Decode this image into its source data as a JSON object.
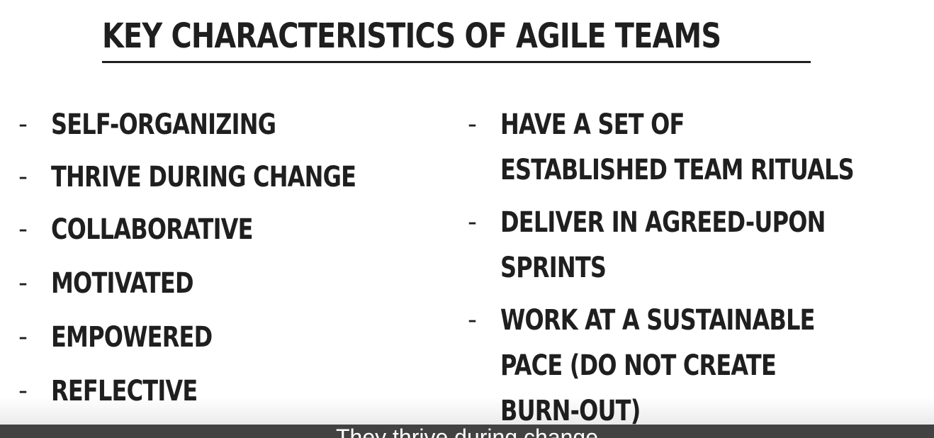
{
  "slide": {
    "title": "KEY CHARACTERISTICS OF AGILE TEAMS",
    "left_items": [
      {
        "dash": "-",
        "text": "SELF-ORGANIZING"
      },
      {
        "dash": "-",
        "text": "THRIVE DURING CHANGE"
      },
      {
        "dash": "-",
        "text": "COLLABORATIVE"
      },
      {
        "dash": "-",
        "text": "MOTIVATED"
      },
      {
        "dash": "-",
        "text": "EMPOWERED"
      },
      {
        "dash": "-",
        "text": "REFLECTIVE"
      }
    ],
    "right_items": [
      {
        "dash": "-",
        "lines": [
          "HAVE A SET OF",
          "ESTABLISHED TEAM RITUALS"
        ]
      },
      {
        "dash": "-",
        "lines": [
          "DELIVER IN AGREED-UPON",
          "SPRINTS"
        ]
      },
      {
        "dash": "-",
        "lines": [
          "WORK AT A SUSTAINABLE",
          "PACE (DO NOT CREATE",
          "BURN-OUT)"
        ]
      }
    ]
  },
  "caption": {
    "text": "They thrive during change"
  }
}
